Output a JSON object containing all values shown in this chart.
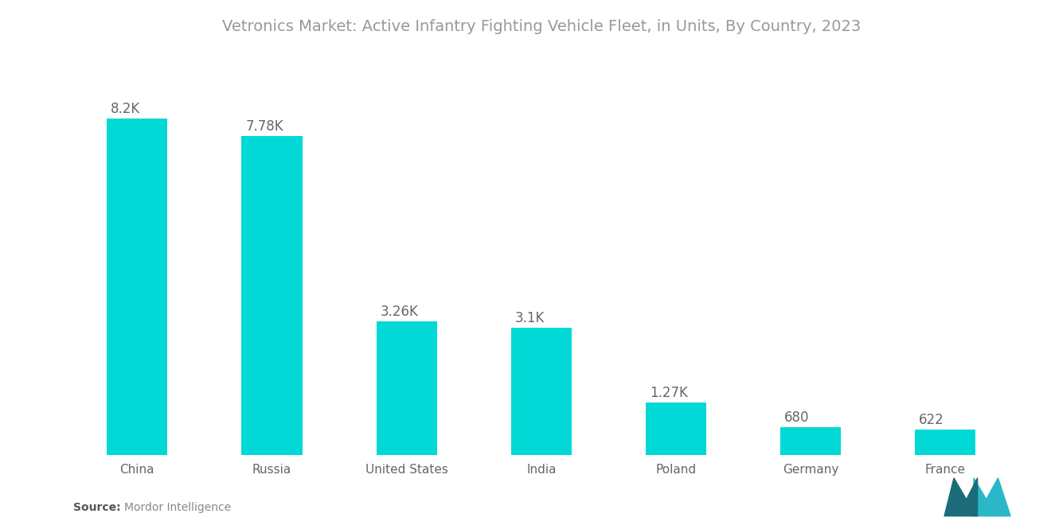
{
  "title": "Vetronics Market: Active Infantry Fighting Vehicle Fleet, in Units, By Country, 2023",
  "categories": [
    "China",
    "Russia",
    "United States",
    "India",
    "Poland",
    "Germany",
    "France"
  ],
  "values": [
    8200,
    7780,
    3260,
    3100,
    1270,
    680,
    622
  ],
  "labels": [
    "8.2K",
    "7.78K",
    "3.26K",
    "3.1K",
    "1.27K",
    "680",
    "622"
  ],
  "bar_color": "#00D9D5",
  "background_color": "#ffffff",
  "title_color": "#999999",
  "label_color": "#666666",
  "tick_color": "#666666",
  "source_bold": "Source:",
  "source_normal": "  Mordor Intelligence",
  "title_fontsize": 14,
  "label_fontsize": 12,
  "tick_fontsize": 11,
  "source_fontsize": 10,
  "bar_width": 0.45,
  "ylim": [
    0,
    9800
  ]
}
